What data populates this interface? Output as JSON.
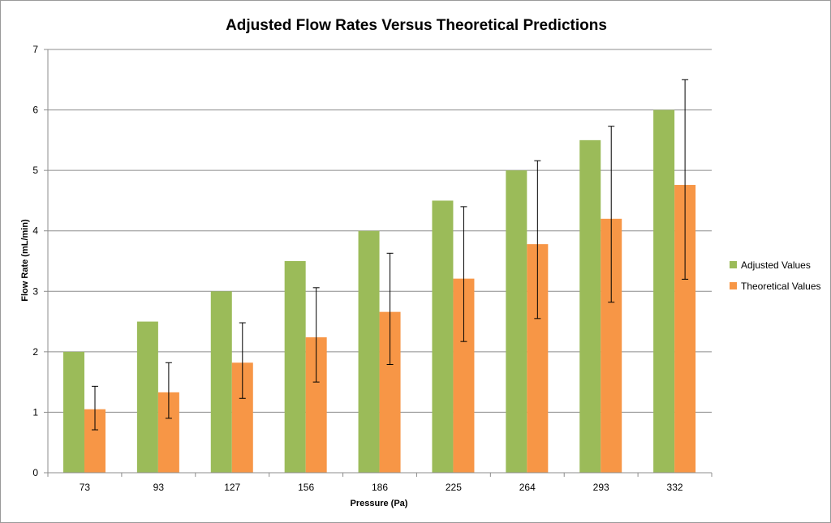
{
  "chart_data": {
    "type": "bar",
    "title": "Adjusted Flow Rates Versus Theoretical Predictions",
    "xlabel": "Pressure (Pa)",
    "ylabel": "Flow Rate (mL/min)",
    "categories": [
      "73",
      "93",
      "127",
      "156",
      "186",
      "225",
      "264",
      "293",
      "332"
    ],
    "ylim": [
      0,
      7
    ],
    "yticks": [
      "0",
      "1",
      "2",
      "3",
      "4",
      "5",
      "6",
      "7"
    ],
    "grid": true,
    "legend_position": "right",
    "series": [
      {
        "name": "Adjusted Values",
        "color": "#9BBB59",
        "values": [
          2.0,
          2.5,
          3.0,
          3.5,
          4.0,
          4.5,
          5.0,
          5.5,
          6.0
        ]
      },
      {
        "name": "Theoretical Values",
        "color": "#F79646",
        "values": [
          1.05,
          1.33,
          1.82,
          2.24,
          2.66,
          3.21,
          3.78,
          4.2,
          4.76
        ],
        "error_low": [
          0.71,
          0.9,
          1.23,
          1.5,
          1.79,
          2.17,
          2.55,
          2.82,
          3.2
        ],
        "error_high": [
          1.43,
          1.82,
          2.48,
          3.06,
          3.63,
          4.4,
          5.16,
          5.73,
          6.5
        ]
      }
    ]
  }
}
